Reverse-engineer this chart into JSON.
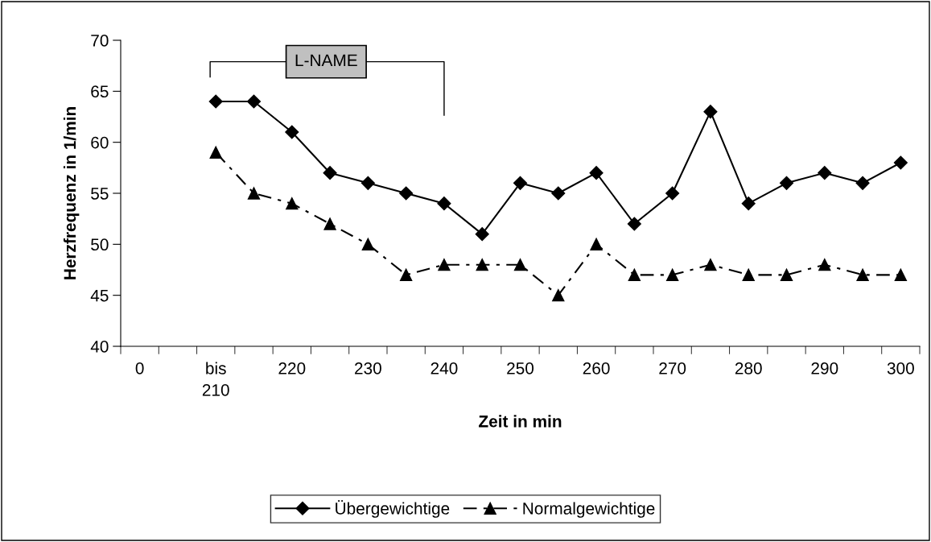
{
  "chart_data": {
    "type": "line",
    "xlabel": "Zeit in min",
    "ylabel": "Herzfrequenz in 1/min",
    "categories": [
      "0",
      null,
      "bis\n210",
      null,
      "220",
      null,
      "230",
      null,
      "240",
      null,
      "250",
      null,
      "260",
      null,
      "270",
      null,
      "280",
      null,
      "290",
      null,
      "300"
    ],
    "ylim": [
      40,
      70
    ],
    "yticks": [
      40,
      45,
      50,
      55,
      60,
      65,
      70
    ],
    "series": [
      {
        "name": "Übergewichtige",
        "color": "#000000",
        "marker": "diamond",
        "line_style": "solid",
        "values": [
          null,
          null,
          64,
          64,
          61,
          57,
          56,
          55,
          54,
          51,
          56,
          55,
          57,
          52,
          55,
          63,
          54,
          56,
          57,
          56,
          58
        ]
      },
      {
        "name": "Normalgewichtige",
        "color": "#000000",
        "marker": "triangle",
        "line_style": "dashdot",
        "values": [
          null,
          null,
          59,
          55,
          54,
          52,
          50,
          47,
          48,
          48,
          48,
          45,
          50,
          47,
          47,
          48,
          47,
          47,
          48,
          47,
          47
        ]
      }
    ],
    "annotations": [
      "L-NAME"
    ],
    "legend": "bottom",
    "grid": false
  }
}
